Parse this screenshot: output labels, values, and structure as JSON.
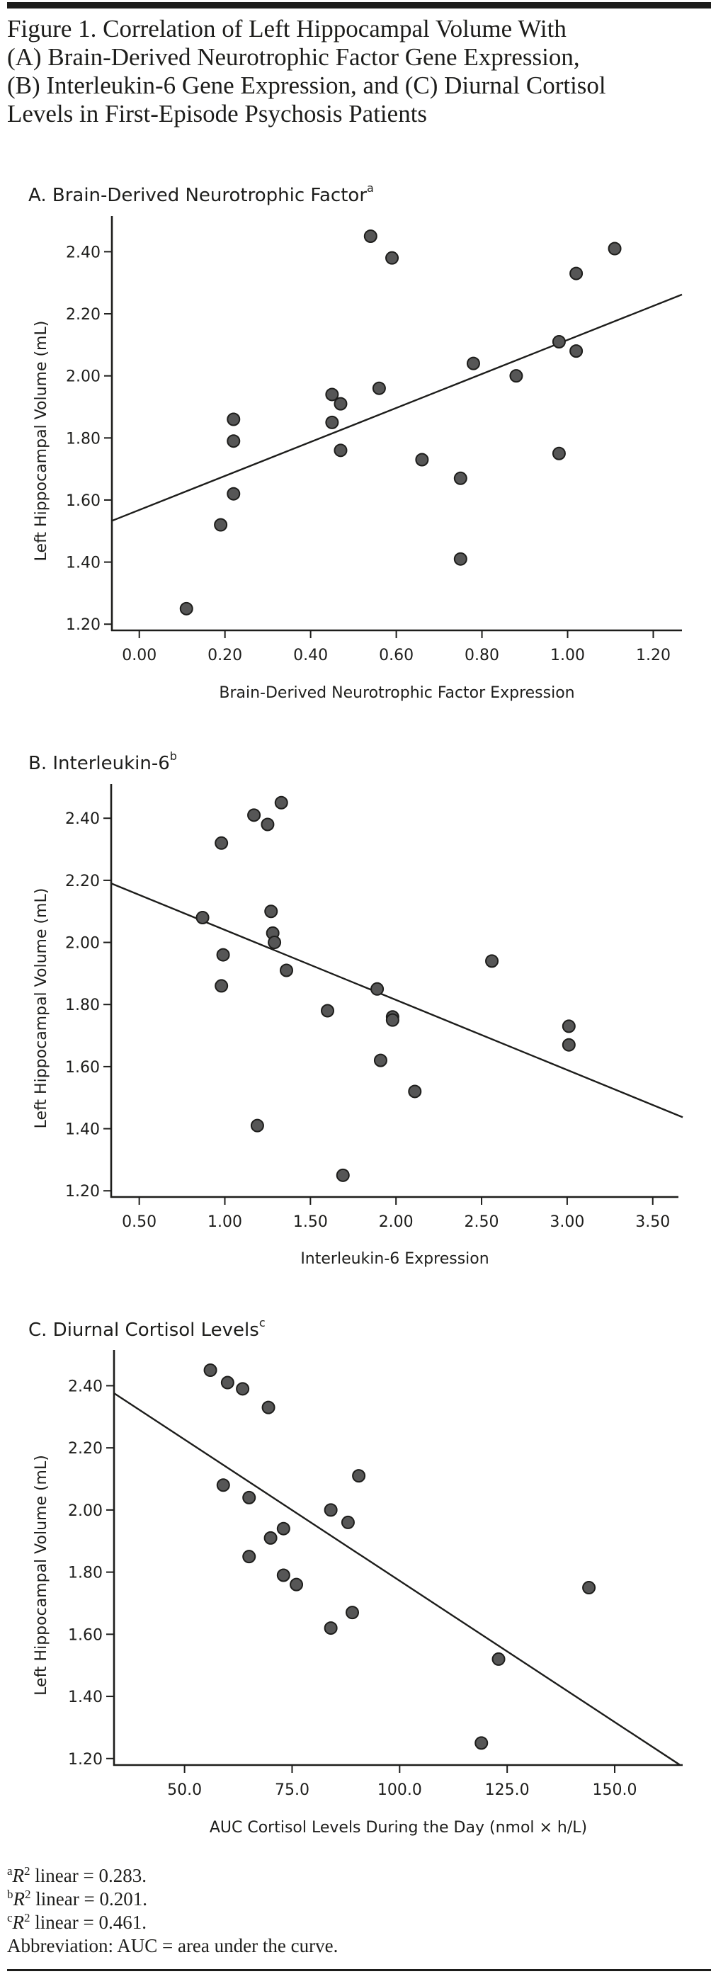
{
  "figure": {
    "title_lines": [
      "Figure 1. Correlation of Left Hippocampal Volume With",
      "(A) Brain-Derived Neurotrophic Factor Gene Expression,",
      "(B) Interleukin-6 Gene Expression, and (C) Diurnal Cortisol",
      "Levels in First-Episode Psychosis Patients"
    ],
    "footnotes": [
      {
        "mark": "a",
        "italic": "R",
        "sup": "2",
        "text": " linear = 0.283."
      },
      {
        "mark": "b",
        "italic": "R",
        "sup": "2",
        "text": " linear = 0.201."
      },
      {
        "mark": "c",
        "italic": "R",
        "sup": "2",
        "text": " linear = 0.461."
      }
    ],
    "abbreviation": "Abbreviation: AUC = area under the curve."
  },
  "chart_data": [
    {
      "type": "scatter",
      "panel": "A",
      "title": "A. Brain-Derived Neurotrophic Factor",
      "title_superscript": "a",
      "xlabel": "Brain-Derived Neurotrophic Factor Expression",
      "ylabel": "Left Hippocampal Volume (mL)",
      "xlim": [
        -0.064,
        1.267
      ],
      "ylim": [
        1.18,
        2.515
      ],
      "xticks": [
        0.0,
        0.2,
        0.4,
        0.6,
        0.8,
        1.0,
        1.2
      ],
      "xtick_labels": [
        "0.00",
        "0.20",
        "0.40",
        "0.60",
        "0.80",
        "1.00",
        "1.20"
      ],
      "yticks": [
        1.2,
        1.4,
        1.6,
        1.8,
        2.0,
        2.2,
        2.4
      ],
      "ytick_labels": [
        "1.20",
        "1.40",
        "1.60",
        "1.80",
        "2.00",
        "2.20",
        "2.40"
      ],
      "grid": false,
      "points": [
        [
          0.11,
          1.25
        ],
        [
          0.19,
          1.52
        ],
        [
          0.22,
          1.62
        ],
        [
          0.22,
          1.79
        ],
        [
          0.22,
          1.86
        ],
        [
          0.45,
          1.85
        ],
        [
          0.45,
          1.94
        ],
        [
          0.47,
          1.91
        ],
        [
          0.47,
          1.76
        ],
        [
          0.54,
          2.45
        ],
        [
          0.56,
          1.96
        ],
        [
          0.59,
          2.38
        ],
        [
          0.66,
          1.73
        ],
        [
          0.75,
          1.67
        ],
        [
          0.75,
          1.41
        ],
        [
          0.78,
          2.04
        ],
        [
          0.88,
          2.0
        ],
        [
          0.98,
          2.11
        ],
        [
          0.98,
          1.75
        ],
        [
          1.02,
          2.33
        ],
        [
          1.02,
          2.08
        ],
        [
          1.11,
          2.41
        ]
      ],
      "fit_line": {
        "x": [
          -0.064,
          1.267
        ],
        "y": [
          1.533,
          2.262
        ]
      },
      "r2_linear": 0.283
    },
    {
      "type": "scatter",
      "panel": "B",
      "title": "B. Interleukin-6",
      "title_superscript": "b",
      "xlabel": "Interleukin-6 Expression",
      "ylabel": "Left Hippocampal Volume (mL)",
      "xlim": [
        0.336,
        3.65
      ],
      "ylim": [
        1.18,
        2.51
      ],
      "xticks": [
        0.5,
        1.0,
        1.5,
        2.0,
        2.5,
        3.0,
        3.5
      ],
      "xtick_labels": [
        "0.50",
        "1.00",
        "1.50",
        "2.00",
        "2.50",
        "3.00",
        "3.50"
      ],
      "yticks": [
        1.2,
        1.4,
        1.6,
        1.8,
        2.0,
        2.2,
        2.4
      ],
      "ytick_labels": [
        "1.20",
        "1.40",
        "1.60",
        "1.80",
        "2.00",
        "2.20",
        "2.40"
      ],
      "grid": false,
      "points": [
        [
          0.87,
          2.08
        ],
        [
          0.98,
          2.32
        ],
        [
          0.98,
          1.86
        ],
        [
          0.99,
          1.96
        ],
        [
          1.17,
          2.41
        ],
        [
          1.19,
          1.41
        ],
        [
          1.25,
          2.38
        ],
        [
          1.27,
          2.1
        ],
        [
          1.28,
          2.03
        ],
        [
          1.29,
          2.0
        ],
        [
          1.33,
          2.45
        ],
        [
          1.36,
          1.91
        ],
        [
          1.6,
          1.78
        ],
        [
          1.69,
          1.25
        ],
        [
          1.89,
          1.85
        ],
        [
          1.91,
          1.62
        ],
        [
          1.98,
          1.76
        ],
        [
          1.98,
          1.75
        ],
        [
          2.11,
          1.52
        ],
        [
          2.56,
          1.94
        ],
        [
          3.01,
          1.73
        ],
        [
          3.01,
          1.67
        ]
      ],
      "fit_line": {
        "x": [
          0.336,
          3.675
        ],
        "y": [
          2.19,
          1.437
        ]
      },
      "r2_linear": 0.201
    },
    {
      "type": "scatter",
      "panel": "C",
      "title": "C. Diurnal Cortisol Levels",
      "title_superscript": "c",
      "xlabel": "AUC Cortisol Levels During the Day (nmol × h/L)",
      "ylabel": "Left Hippocampal Volume (mL)",
      "xlim": [
        33.6,
        165.8
      ],
      "ylim": [
        1.179,
        2.515
      ],
      "xticks": [
        50,
        75,
        100,
        125,
        150
      ],
      "xtick_labels": [
        "50.0",
        "75.0",
        "100.0",
        "125.0",
        "150.0"
      ],
      "yticks": [
        1.2,
        1.4,
        1.6,
        1.8,
        2.0,
        2.2,
        2.4
      ],
      "ytick_labels": [
        "1.20",
        "1.40",
        "1.60",
        "1.80",
        "2.00",
        "2.20",
        "2.40"
      ],
      "grid": false,
      "points": [
        [
          56,
          2.45
        ],
        [
          60,
          2.41
        ],
        [
          63.5,
          2.39
        ],
        [
          69.5,
          2.33
        ],
        [
          59,
          2.08
        ],
        [
          65,
          2.04
        ],
        [
          65,
          1.85
        ],
        [
          70,
          1.91
        ],
        [
          73,
          1.94
        ],
        [
          73,
          1.79
        ],
        [
          76,
          1.76
        ],
        [
          84,
          2.0
        ],
        [
          88,
          1.96
        ],
        [
          90.5,
          2.11
        ],
        [
          84,
          1.62
        ],
        [
          89,
          1.67
        ],
        [
          123,
          1.52
        ],
        [
          119,
          1.25
        ],
        [
          144,
          1.75
        ]
      ],
      "fit_line": {
        "x": [
          33.6,
          165.1
        ],
        "y": [
          2.376,
          1.18
        ]
      },
      "r2_linear": 0.461
    }
  ]
}
